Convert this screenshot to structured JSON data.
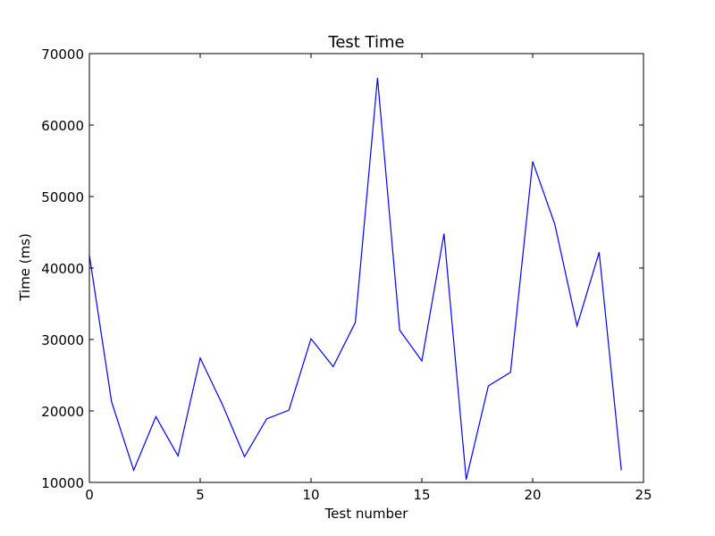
{
  "chart_data": {
    "type": "line",
    "title": "Test Time",
    "xlabel": "Test number",
    "ylabel": "Time (ms)",
    "xlim": [
      0,
      25
    ],
    "ylim": [
      10000,
      70000
    ],
    "xticks": [
      0,
      5,
      10,
      15,
      20,
      25
    ],
    "yticks": [
      10000,
      20000,
      30000,
      40000,
      50000,
      60000,
      70000
    ],
    "grid": false,
    "series": [
      {
        "color": "#0000ff",
        "x": [
          0,
          1,
          2,
          3,
          4,
          5,
          6,
          7,
          8,
          9,
          10,
          11,
          12,
          13,
          14,
          15,
          16,
          17,
          18,
          19,
          20,
          21,
          22,
          23,
          24
        ],
        "y": [
          41800,
          21300,
          11700,
          19200,
          13700,
          27400,
          20900,
          13600,
          18900,
          20100,
          30100,
          26200,
          32400,
          66600,
          31300,
          27000,
          44800,
          10400,
          23500,
          25400,
          54900,
          46100,
          31900,
          42200,
          11700
        ]
      }
    ]
  }
}
